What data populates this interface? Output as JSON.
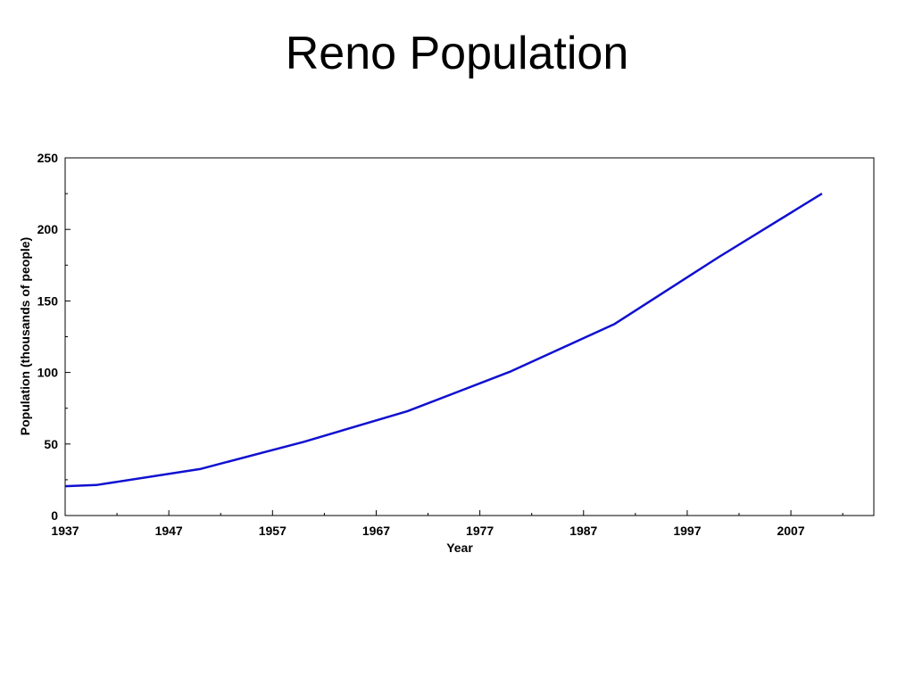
{
  "slide": {
    "title": "Reno Population"
  },
  "chart_data": {
    "type": "line",
    "title": "Reno Population",
    "xlabel": "Year",
    "ylabel": "Population (thousands of people)",
    "xlim": [
      1937,
      2015
    ],
    "ylim": [
      0,
      250
    ],
    "xticks": [
      1937,
      1947,
      1957,
      1967,
      1977,
      1987,
      1997,
      2007
    ],
    "yticks": [
      0,
      50,
      100,
      150,
      200,
      250
    ],
    "grid": false,
    "series": [
      {
        "color": "#1010d0",
        "x": [
          1937,
          1940,
          1950,
          1960,
          1970,
          1980,
          1990,
          2000,
          2010
        ],
        "y": [
          20.5,
          21.3,
          32.5,
          51.5,
          72.9,
          100.8,
          133.9,
          180.5,
          225
        ]
      }
    ]
  }
}
